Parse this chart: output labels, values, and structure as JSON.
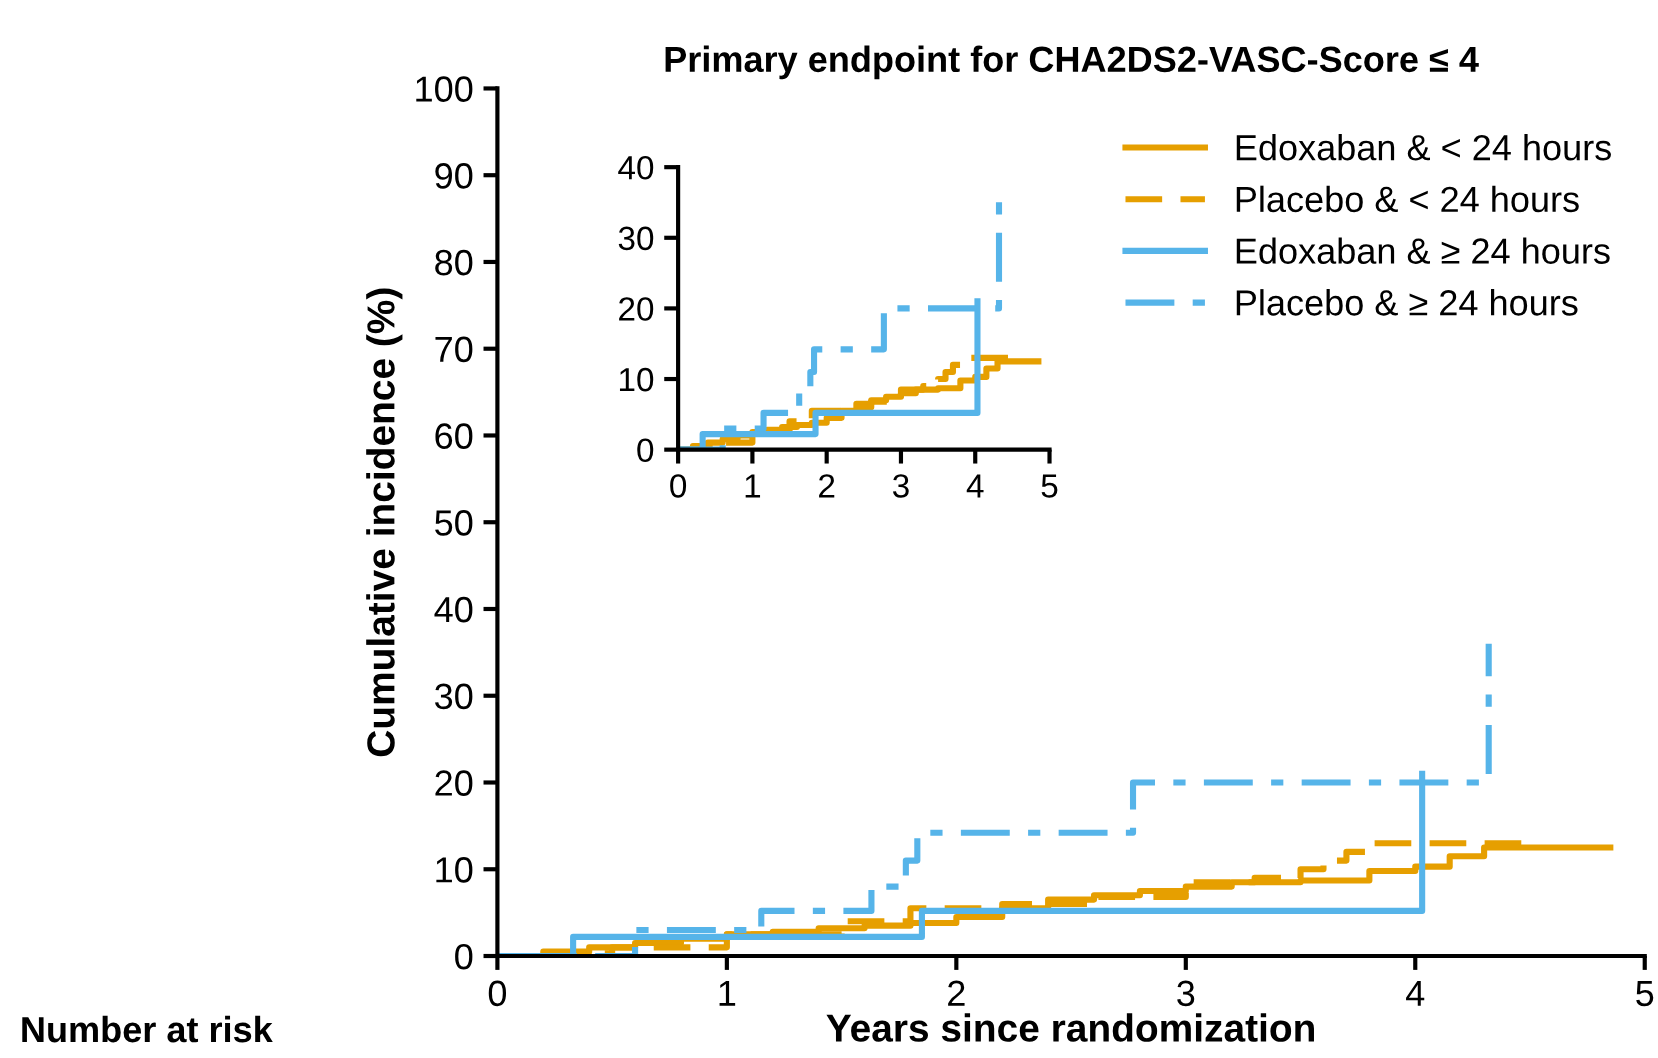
{
  "chart_data": [
    {
      "type": "step",
      "title": "Primary endpoint for CHA2DS2-VASC-Score ≤ 4",
      "xlabel": "Years since randomization",
      "ylabel": "Cumulative incidence (%)",
      "xlim": [
        0,
        5
      ],
      "ylim": [
        0,
        100
      ],
      "xticks": [
        0,
        1,
        2,
        3,
        4,
        5
      ],
      "yticks": [
        0,
        10,
        20,
        30,
        40,
        50,
        60,
        70,
        80,
        90,
        100
      ],
      "grid": false,
      "legend": "top right",
      "annotations": [
        "Number at risk"
      ],
      "series": [
        {
          "name": "Edoxaban & < 24 hours",
          "color": "#e69f00",
          "line_style": "solid",
          "x": [
            0,
            0.2,
            0.4,
            0.6,
            0.8,
            1.0,
            1.2,
            1.4,
            1.6,
            1.8,
            2.0,
            2.2,
            2.4,
            2.6,
            2.8,
            3.0,
            3.2,
            3.5,
            3.8,
            4.0,
            4.15,
            4.3,
            4.85
          ],
          "values": [
            0,
            0.5,
            1,
            1.5,
            2,
            2.5,
            2.8,
            3.2,
            3.5,
            3.8,
            4.5,
            5.5,
            6.5,
            7,
            7.5,
            8,
            8.5,
            8.7,
            9.8,
            10.3,
            11.5,
            12.5,
            12.5
          ]
        },
        {
          "name": "Placebo & < 24 hours",
          "color": "#e69f00",
          "line_style": "dashed",
          "x": [
            0,
            0.2,
            0.5,
            1.0,
            1.5,
            1.8,
            2.2,
            2.6,
            3.0,
            3.3,
            3.5,
            3.6,
            3.7,
            3.8,
            4.5
          ],
          "values": [
            0,
            0.3,
            1,
            2.5,
            4,
            5.5,
            6,
            6.8,
            8.5,
            9,
            10,
            11,
            12,
            13,
            13
          ]
        },
        {
          "name": "Edoxaban & ≥ 24 hours",
          "color": "#56b4e9",
          "line_style": "solid",
          "x": [
            0,
            0.33,
            1.85,
            4.03,
            4.03
          ],
          "values": [
            0,
            2.2,
            5.2,
            21,
            21
          ]
        },
        {
          "name": "Placebo & ≥ 24 hours",
          "color": "#56b4e9",
          "line_style": "dashdot",
          "x": [
            0,
            0.6,
            1.15,
            1.63,
            1.78,
            1.83,
            2.77,
            4.32,
            4.32
          ],
          "values": [
            0,
            3,
            5.2,
            8,
            11,
            14.2,
            20,
            36,
            36
          ]
        }
      ]
    },
    {
      "type": "step",
      "xlim": [
        0,
        5
      ],
      "ylim": [
        0,
        40
      ],
      "xticks": [
        0,
        1,
        2,
        3,
        4,
        5
      ],
      "yticks": [
        0,
        10,
        20,
        30,
        40
      ],
      "grid": false,
      "series": [
        {
          "color": "#e69f00",
          "line_style": "solid",
          "x": [
            0,
            0.2,
            0.4,
            0.6,
            0.8,
            1.0,
            1.2,
            1.4,
            1.6,
            1.8,
            2.0,
            2.2,
            2.4,
            2.6,
            2.8,
            3.0,
            3.2,
            3.5,
            3.8,
            4.0,
            4.15,
            4.3,
            4.85
          ],
          "values": [
            0,
            0.5,
            1,
            1.5,
            2,
            2.5,
            2.8,
            3.2,
            3.5,
            3.8,
            4.5,
            5.5,
            6.5,
            7,
            7.5,
            8,
            8.5,
            8.7,
            9.8,
            10.3,
            11.5,
            12.5,
            12.5
          ]
        },
        {
          "color": "#e69f00",
          "line_style": "dashed",
          "x": [
            0,
            0.2,
            0.5,
            1.0,
            1.5,
            1.8,
            2.2,
            2.6,
            3.0,
            3.3,
            3.5,
            3.6,
            3.7,
            3.8,
            4.5
          ],
          "values": [
            0,
            0.3,
            1,
            2.5,
            4,
            5.5,
            6,
            6.8,
            8.5,
            9,
            10,
            11,
            12,
            13,
            13
          ]
        },
        {
          "color": "#56b4e9",
          "line_style": "solid",
          "x": [
            0,
            0.33,
            1.85,
            4.03,
            4.03
          ],
          "values": [
            0,
            2.2,
            5.2,
            21,
            21
          ]
        },
        {
          "color": "#56b4e9",
          "line_style": "dashdot",
          "x": [
            0,
            0.6,
            1.15,
            1.63,
            1.78,
            1.83,
            2.77,
            4.32,
            4.32
          ],
          "values": [
            0,
            3,
            5.2,
            8,
            11,
            14.2,
            20,
            36,
            36
          ]
        }
      ]
    }
  ]
}
